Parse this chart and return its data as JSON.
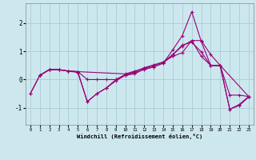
{
  "xlabel": "Windchill (Refroidissement éolien,°C)",
  "background_color": "#cce8ee",
  "grid_color": "#aaccd4",
  "line_color": "#990077",
  "xlim": [
    -0.5,
    23.5
  ],
  "ylim": [
    -1.6,
    2.7
  ],
  "yticks": [
    -1,
    0,
    1,
    2
  ],
  "xticks": [
    0,
    1,
    2,
    3,
    4,
    5,
    6,
    7,
    8,
    9,
    10,
    11,
    12,
    13,
    14,
    15,
    16,
    17,
    18,
    19,
    20,
    21,
    22,
    23
  ],
  "series": [
    {
      "x": [
        0,
        1,
        2,
        3,
        4,
        5,
        6,
        7,
        8,
        9,
        10,
        11,
        12,
        13,
        14,
        15,
        16,
        17,
        18,
        19,
        20,
        21,
        22,
        23
      ],
      "y": [
        -0.5,
        0.15,
        0.35,
        0.35,
        0.3,
        0.28,
        -0.78,
        -0.5,
        -0.3,
        -0.05,
        0.15,
        0.2,
        0.38,
        0.45,
        0.58,
        1.05,
        1.55,
        2.4,
        1.35,
        0.5,
        0.48,
        -1.05,
        -0.88,
        -0.6
      ]
    },
    {
      "x": [
        0,
        1,
        2,
        3,
        4,
        5,
        6,
        7,
        8,
        9,
        10,
        11,
        12,
        13,
        14,
        15,
        16,
        17,
        18,
        19,
        20,
        21,
        22,
        23
      ],
      "y": [
        -0.5,
        0.15,
        0.35,
        0.35,
        0.3,
        0.25,
        -0.78,
        -0.5,
        -0.3,
        0.0,
        0.18,
        0.28,
        0.42,
        0.52,
        0.62,
        0.88,
        1.18,
        1.38,
        1.38,
        0.88,
        0.5,
        -1.05,
        -0.92,
        -0.62
      ]
    },
    {
      "x": [
        1,
        2,
        3,
        4,
        5,
        6,
        7,
        8,
        9,
        10,
        11,
        12,
        13,
        14,
        15,
        16,
        17,
        18,
        19,
        20,
        21,
        22,
        23
      ],
      "y": [
        0.15,
        0.35,
        0.35,
        0.3,
        0.28,
        0.0,
        0.0,
        0.0,
        0.0,
        0.15,
        0.25,
        0.35,
        0.45,
        0.58,
        0.88,
        1.22,
        1.32,
        0.98,
        0.5,
        0.5,
        -0.55,
        -0.55,
        -0.6
      ]
    },
    {
      "x": [
        1,
        2,
        3,
        4,
        5,
        10,
        11,
        12,
        13,
        14,
        15,
        16,
        17,
        18,
        19,
        20,
        23
      ],
      "y": [
        0.15,
        0.35,
        0.35,
        0.3,
        0.28,
        0.2,
        0.3,
        0.4,
        0.5,
        0.62,
        0.82,
        0.95,
        1.38,
        0.82,
        0.5,
        0.5,
        -0.6
      ]
    }
  ]
}
